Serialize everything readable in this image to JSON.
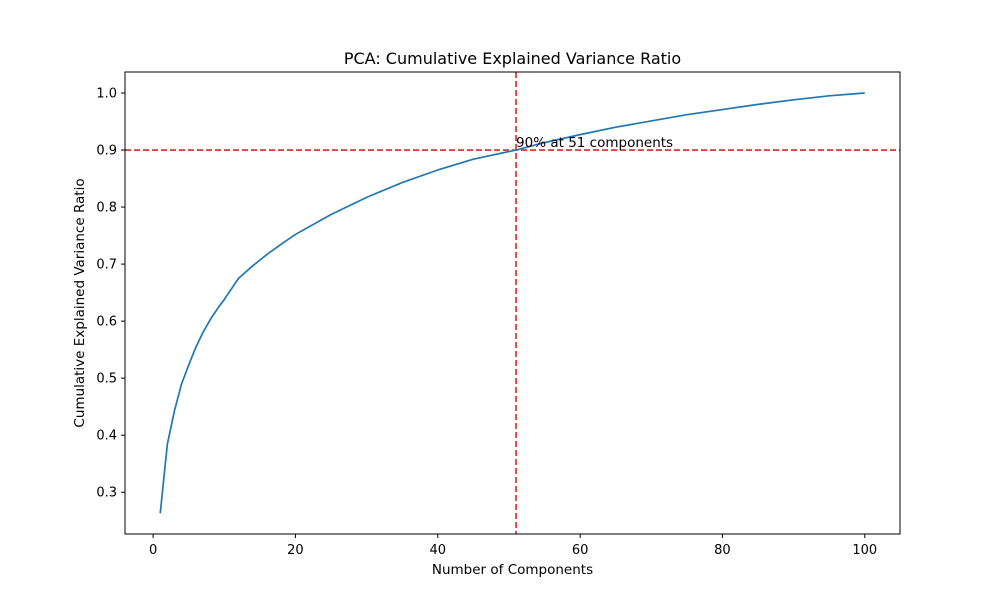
{
  "chart_data": {
    "type": "line",
    "title": "PCA: Cumulative Explained Variance Ratio",
    "xlabel": "Number of Components",
    "ylabel": "Cumulative Explained Variance Ratio",
    "xlim": [
      -3.95,
      104.95
    ],
    "ylim": [
      0.2268,
      1.0368
    ],
    "xticks": [
      0,
      20,
      40,
      60,
      80,
      100
    ],
    "yticks": [
      0.3,
      0.4,
      0.5,
      0.6,
      0.7,
      0.8,
      0.9,
      1.0
    ],
    "xtick_labels": [
      "0",
      "20",
      "40",
      "60",
      "80",
      "100"
    ],
    "ytick_labels": [
      "0.3",
      "0.4",
      "0.5",
      "0.6",
      "0.7",
      "0.8",
      "0.9",
      "1.0"
    ],
    "grid": false,
    "series": [
      {
        "color": "#1f77b4",
        "x": [
          1,
          2,
          3,
          4,
          5,
          6,
          7,
          8,
          9,
          10,
          12,
          14,
          16,
          18,
          20,
          25,
          30,
          35,
          40,
          45,
          51,
          55,
          60,
          65,
          70,
          75,
          80,
          85,
          90,
          95,
          100
        ],
        "y": [
          0.263,
          0.384,
          0.443,
          0.49,
          0.523,
          0.554,
          0.58,
          0.602,
          0.621,
          0.638,
          0.675,
          0.697,
          0.717,
          0.735,
          0.752,
          0.787,
          0.817,
          0.843,
          0.865,
          0.884,
          0.9,
          0.913,
          0.927,
          0.94,
          0.951,
          0.962,
          0.971,
          0.98,
          0.988,
          0.995,
          1.0
        ]
      }
    ],
    "reference_lines": [
      {
        "orientation": "horizontal",
        "value": 0.9,
        "color": "#d62728",
        "style": "dashed"
      },
      {
        "orientation": "vertical",
        "value": 51,
        "color": "#d62728",
        "style": "dashed"
      }
    ],
    "annotations": [
      {
        "text": "90% at 51 components",
        "x": 51,
        "y": 0.9
      }
    ]
  }
}
